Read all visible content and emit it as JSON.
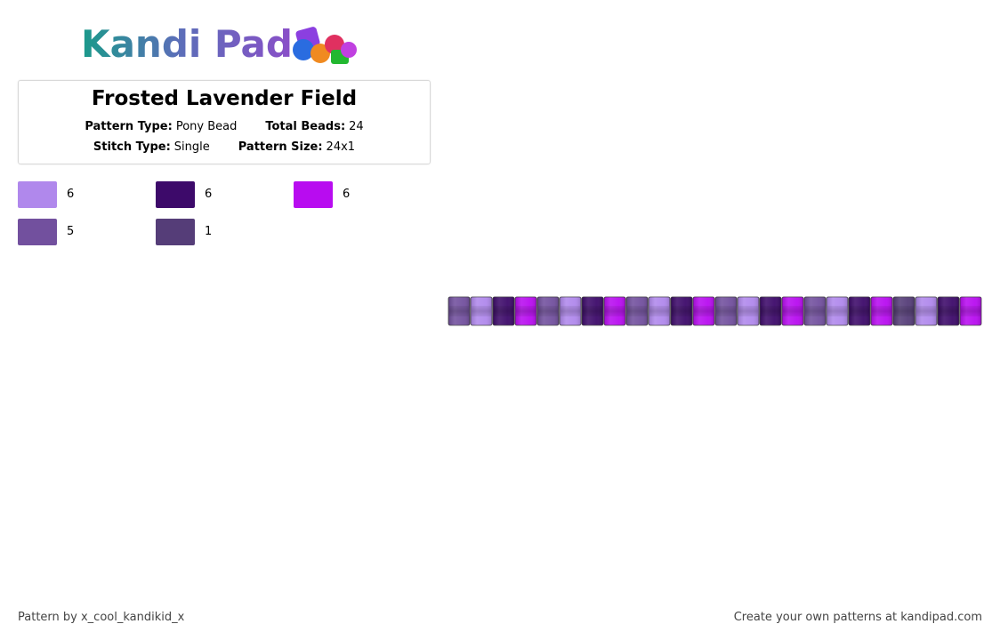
{
  "logo": {
    "text": "Kandi Pad"
  },
  "title": "Frosted Lavender Field",
  "info": [
    [
      {
        "label": "Pattern Type:",
        "value": "Pony Bead"
      },
      {
        "label": "Total Beads:",
        "value": "24"
      }
    ],
    [
      {
        "label": "Stitch Type:",
        "value": "Single"
      },
      {
        "label": "Pattern Size:",
        "value": "24x1"
      }
    ]
  ],
  "legend": [
    {
      "color": "#b088ec",
      "count": 6
    },
    {
      "color": "#3d0a6a",
      "count": 6
    },
    {
      "color": "#b80cf0",
      "count": 6
    },
    {
      "color": "#72509e",
      "count": 5
    },
    {
      "color": "#553d78",
      "count": 1
    }
  ],
  "beads": [
    3,
    0,
    1,
    2,
    3,
    0,
    1,
    2,
    3,
    0,
    1,
    2,
    3,
    0,
    1,
    2,
    3,
    0,
    1,
    2,
    4,
    0,
    1,
    2
  ],
  "footer": {
    "left": "Pattern by x_cool_kandikid_x",
    "right": "Create your own patterns at kandipad.com"
  }
}
